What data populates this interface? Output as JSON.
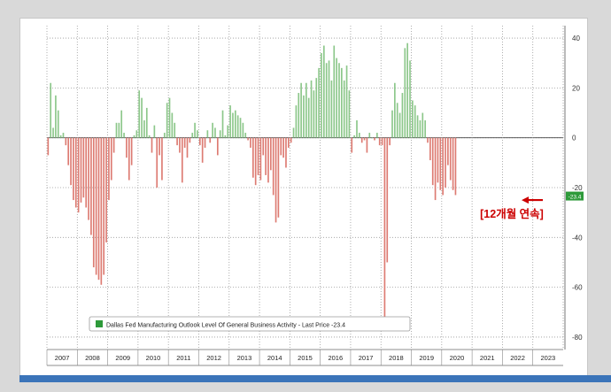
{
  "chart_data": {
    "type": "bar",
    "legend": {
      "label": "Dallas Fed Manufacturing Outlook Level Of General Business Activity - Last Price -23.4",
      "position": "bottom-left"
    },
    "annotation": "[12개월 연속]",
    "last_price_tag": "-23.4",
    "ylim": [
      -85,
      45
    ],
    "yticks": [
      40,
      20,
      0,
      -20,
      -40,
      -60,
      -80
    ],
    "grid": true,
    "colors": {
      "positive": "#8cc78a",
      "negative": "#dd7b72",
      "annotation": "#cc0000",
      "tag": "#2e9a3a"
    },
    "x_start_year": 2007,
    "years": [
      "2007",
      "2008",
      "2009",
      "2010",
      "2011",
      "2012",
      "2013",
      "2014",
      "2015",
      "2016",
      "2017",
      "2018",
      "2019",
      "2020",
      "2021",
      "2022",
      "2023"
    ],
    "values": [
      -7,
      22,
      4,
      17,
      11,
      1,
      2,
      -3,
      -11,
      -19,
      -25,
      -28,
      -30,
      -26,
      -24,
      -28,
      -33,
      -39,
      -52,
      -55,
      -57,
      -59,
      -55,
      -42,
      -25,
      -17,
      -6,
      6,
      6,
      11,
      2,
      -8,
      -17,
      -11,
      1,
      3,
      19,
      16,
      7,
      12,
      1,
      -6,
      5,
      -20,
      -7,
      -17,
      2,
      14,
      16,
      10,
      6,
      -3,
      -6,
      -18,
      -4,
      -8,
      -2,
      2,
      6,
      3,
      -3,
      -10,
      -4,
      3,
      -2,
      6,
      4,
      -7,
      3,
      11,
      1,
      5,
      13,
      10,
      11,
      9,
      8,
      6,
      2,
      -1,
      -4,
      -16,
      -19,
      -15,
      -17,
      -7,
      -15,
      -18,
      -13,
      -23,
      -34,
      -32,
      -7,
      -8,
      -12,
      -4,
      -2,
      4,
      13,
      18,
      22,
      17,
      22,
      16,
      23,
      19,
      24,
      28,
      34,
      37,
      30,
      31,
      23,
      37,
      32,
      30,
      28,
      23,
      29,
      19,
      -6,
      1,
      7,
      2,
      -2,
      -1,
      -6,
      2,
      0,
      -1,
      2,
      -3,
      -3,
      -73,
      -50,
      -3,
      11,
      22,
      14,
      10,
      18,
      36,
      38,
      31,
      15,
      13,
      9,
      7,
      10,
      7,
      -2,
      -9,
      -19,
      -25,
      -18,
      -21,
      -23,
      -20,
      -11,
      -17,
      -21,
      -23
    ]
  }
}
